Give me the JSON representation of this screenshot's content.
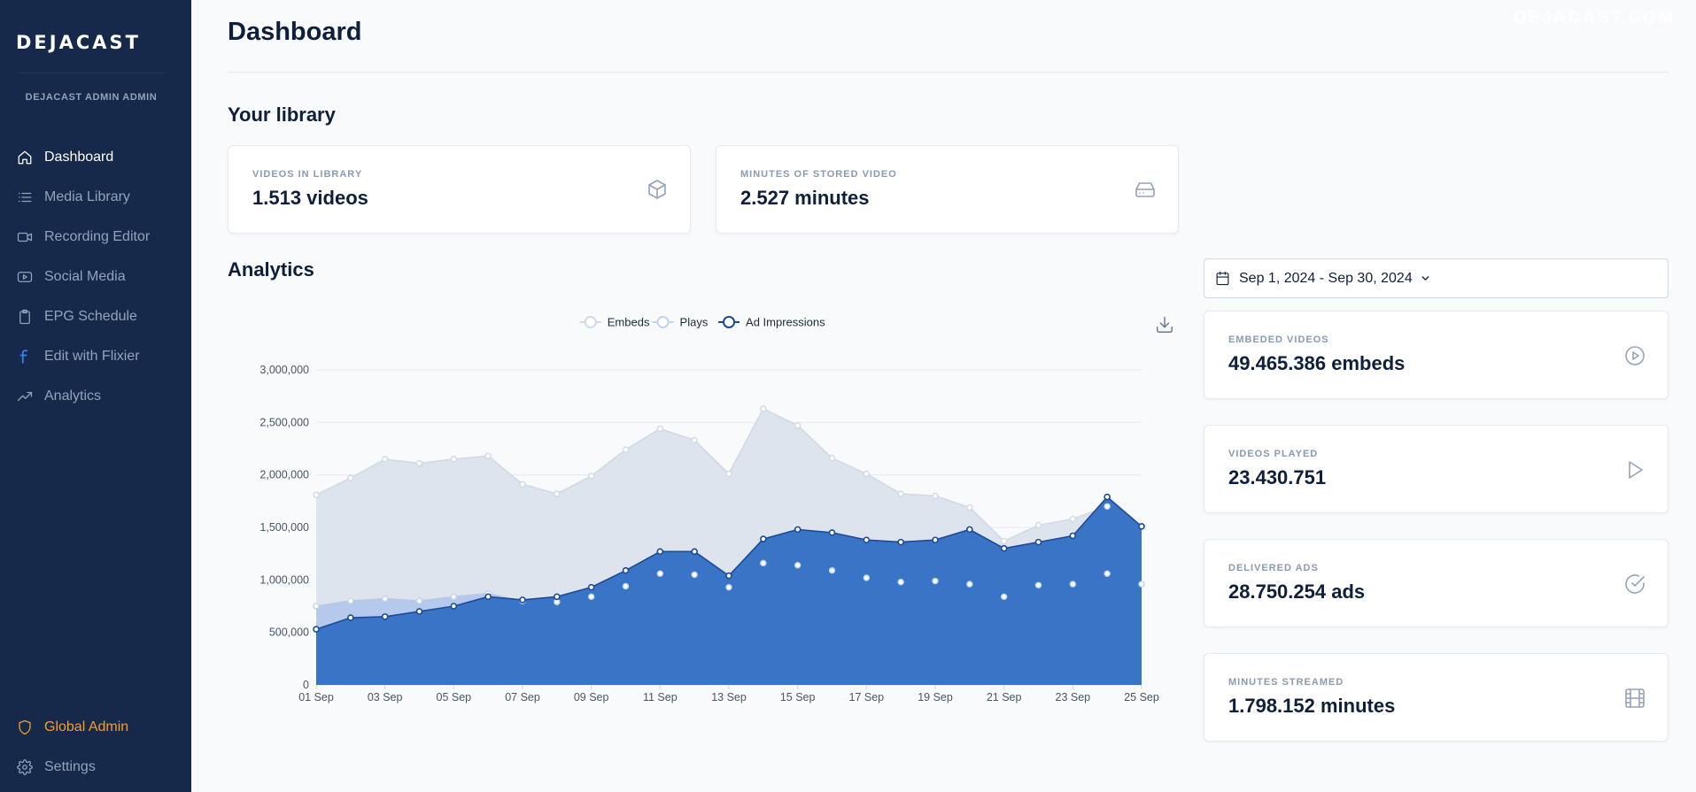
{
  "app": {
    "logo": "DEJACAST",
    "watermark": "DEJACAST.COM"
  },
  "sidebar": {
    "user_label": "DEJACAST ADMIN ADMIN",
    "items": [
      {
        "label": "Dashboard",
        "icon": "home-icon",
        "active": true
      },
      {
        "label": "Media Library",
        "icon": "list-icon"
      },
      {
        "label": "Recording Editor",
        "icon": "video-camera-icon"
      },
      {
        "label": "Social Media",
        "icon": "youtube-icon"
      },
      {
        "label": "EPG Schedule",
        "icon": "clipboard-icon"
      },
      {
        "label": "Edit with Flixier",
        "icon": "flixier-icon"
      },
      {
        "label": "Analytics",
        "icon": "trending-up-icon"
      }
    ],
    "bottom_items": [
      {
        "label": "Global Admin",
        "icon": "shield-icon",
        "color": "#f59e2a"
      },
      {
        "label": "Settings",
        "icon": "gear-icon"
      }
    ]
  },
  "page": {
    "title": "Dashboard"
  },
  "library": {
    "title": "Your library",
    "cards": [
      {
        "label": "VIDEOS IN LIBRARY",
        "value": "1.513 videos",
        "icon": "cube-icon"
      },
      {
        "label": "MINUTES OF STORED VIDEO",
        "value": "2.527 minutes",
        "icon": "hard-drive-icon"
      }
    ]
  },
  "analytics": {
    "title": "Analytics",
    "date_range": "Sep 1, 2024 - Sep 30, 2024",
    "download_icon": "download-icon",
    "cards": [
      {
        "label": "EMBEDED VIDEOS",
        "value": "49.465.386 embeds",
        "icon": "play-circle-icon"
      },
      {
        "label": "VIDEOS PLAYED",
        "value": "23.430.751",
        "icon": "play-icon"
      },
      {
        "label": "DELIVERED ADS",
        "value": "28.750.254 ads",
        "icon": "check-circle-icon"
      },
      {
        "label": "MINUTES STREAMED",
        "value": "1.798.152 minutes",
        "icon": "film-icon"
      }
    ]
  },
  "chart_data": {
    "type": "area",
    "legend_position": "top-center",
    "grid": true,
    "ylim": [
      0,
      3000000
    ],
    "y_ticks": [
      "0",
      "500,000",
      "1,000,000",
      "1,500,000",
      "2,000,000",
      "2,500,000",
      "3,000,000"
    ],
    "x_labels": [
      "01 Sep",
      "03 Sep",
      "05 Sep",
      "07 Sep",
      "09 Sep",
      "11 Sep",
      "13 Sep",
      "15 Sep",
      "17 Sep",
      "19 Sep",
      "21 Sep",
      "23 Sep",
      "25 Sep"
    ],
    "x": [
      "01 Sep",
      "02 Sep",
      "03 Sep",
      "04 Sep",
      "05 Sep",
      "06 Sep",
      "07 Sep",
      "08 Sep",
      "09 Sep",
      "10 Sep",
      "11 Sep",
      "12 Sep",
      "13 Sep",
      "14 Sep",
      "15 Sep",
      "16 Sep",
      "17 Sep",
      "18 Sep",
      "19 Sep",
      "20 Sep",
      "21 Sep",
      "22 Sep",
      "23 Sep",
      "24 Sep",
      "25 Sep"
    ],
    "series": [
      {
        "name": "Embeds",
        "color": "#c9d3e2",
        "values": [
          1810000,
          1970000,
          2150000,
          2110000,
          2150000,
          2180000,
          1910000,
          1820000,
          1990000,
          2240000,
          2440000,
          2330000,
          2010000,
          2630000,
          2470000,
          2160000,
          2010000,
          1820000,
          1800000,
          1690000,
          1370000,
          1520000,
          1580000,
          1700000,
          1510000
        ]
      },
      {
        "name": "Plays",
        "color": "#a3bde8",
        "values": [
          750000,
          800000,
          820000,
          800000,
          840000,
          870000,
          800000,
          790000,
          840000,
          940000,
          1060000,
          1050000,
          930000,
          1160000,
          1140000,
          1090000,
          1020000,
          980000,
          990000,
          960000,
          840000,
          950000,
          960000,
          1060000,
          960000
        ]
      },
      {
        "name": "Ad Impressions",
        "color": "#1f57b8",
        "values": [
          530000,
          640000,
          650000,
          700000,
          750000,
          840000,
          810000,
          840000,
          930000,
          1090000,
          1270000,
          1270000,
          1040000,
          1390000,
          1480000,
          1450000,
          1380000,
          1360000,
          1380000,
          1480000,
          1300000,
          1360000,
          1420000,
          1790000,
          1510000
        ]
      }
    ]
  }
}
